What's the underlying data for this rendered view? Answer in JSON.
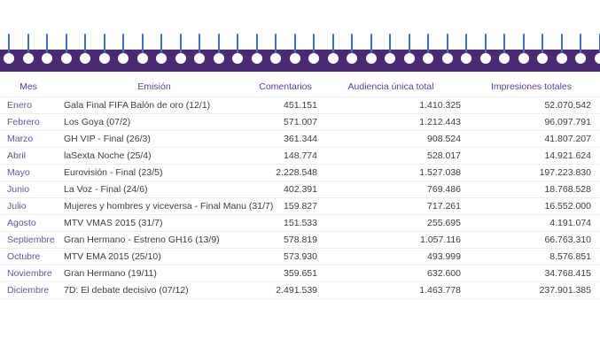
{
  "page": {
    "background": "#ffffff"
  },
  "decoration": {
    "name": "notebook-spiral-binding",
    "pin_count": 32,
    "bar_color": "#4a2a70",
    "pin_color": "#3f70c8",
    "hole_color": "#ffffff"
  },
  "colors": {
    "header_text": "#5b3e96",
    "month_text": "#6c519f",
    "body_text": "#3d3d3d",
    "row_border": "#ededed"
  },
  "chart_data": {
    "type": "table",
    "title": "",
    "columns": [
      "Mes",
      "Emisión",
      "Comentarios",
      "Audiencia única total",
      "Impresiones totales"
    ],
    "rows": [
      [
        "Enero",
        "Gala Final FIFA Balón de oro (12/1)",
        "451.151",
        "1.410.325",
        "52.070.542"
      ],
      [
        "Febrero",
        "Los Goya (07/2)",
        "571.007",
        "1.212.443",
        "96.097.791"
      ],
      [
        "Marzo",
        "GH VIP - Final (26/3)",
        "361.344",
        "908.524",
        "41.807.207"
      ],
      [
        "Abril",
        "laSexta Noche (25/4)",
        "148.774",
        "528.017",
        "14.921.624"
      ],
      [
        "Mayo",
        "Eurovisión - Final (23/5)",
        "2.228.548",
        "1.527.038",
        "197.223.830"
      ],
      [
        "Junio",
        "La Voz - Final (24/6)",
        "402.391",
        "769.486",
        "18.768.528"
      ],
      [
        "Julio",
        "Mujeres y hombres y viceversa - Final Manu (31/7)",
        "159.827",
        "717.261",
        "16.552.000"
      ],
      [
        "Agosto",
        "MTV VMAS 2015 (31/7)",
        "151.533",
        "255.695",
        "4.191.074"
      ],
      [
        "Septiembre",
        "Gran Hermano - Estreno GH16 (13/9)",
        "578.819",
        "1.057.116",
        "66.763.310"
      ],
      [
        "Octubre",
        "MTV EMA 2015 (25/10)",
        "573.930",
        "493.999",
        "8.576.851"
      ],
      [
        "Noviembre",
        "Gran Hermano (19/11)",
        "359.651",
        "632.600",
        "34.768.415"
      ],
      [
        "Diciembre",
        "7D: El debate decisivo (07/12)",
        "2.491.539",
        "1.463.778",
        "237.901.385"
      ]
    ]
  }
}
